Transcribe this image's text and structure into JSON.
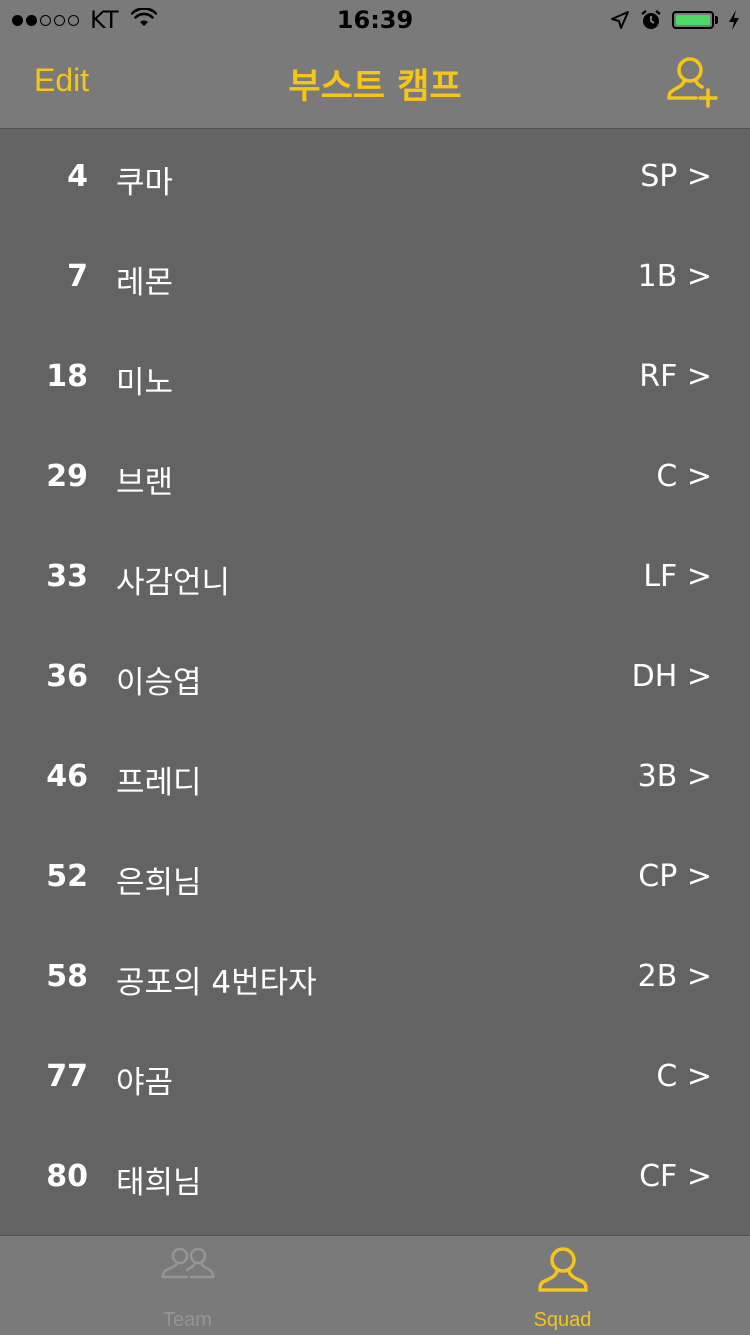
{
  "status_bar": {
    "carrier": "KT",
    "time": "16:39",
    "battery_level": 1.0,
    "battery_color": "#4cd964"
  },
  "nav": {
    "edit_label": "Edit",
    "title": "부스트 캠프",
    "add_icon": "add-user-icon"
  },
  "players": [
    {
      "number": "4",
      "name": "쿠마",
      "position": "SP >"
    },
    {
      "number": "7",
      "name": "레몬",
      "position": "1B >"
    },
    {
      "number": "18",
      "name": "미노",
      "position": "RF >"
    },
    {
      "number": "29",
      "name": "브랜",
      "position": "C >"
    },
    {
      "number": "33",
      "name": "사감언니",
      "position": "LF >"
    },
    {
      "number": "36",
      "name": "이승엽",
      "position": "DH >"
    },
    {
      "number": "46",
      "name": "프레디",
      "position": "3B >"
    },
    {
      "number": "52",
      "name": "은희님",
      "position": "CP >"
    },
    {
      "number": "58",
      "name": "공포의 4번타자",
      "position": "2B >"
    },
    {
      "number": "77",
      "name": "야곰",
      "position": "C >"
    },
    {
      "number": "80",
      "name": "태희님",
      "position": "CF >"
    }
  ],
  "tabs": [
    {
      "label": "Team",
      "icon": "team-icon",
      "selected": false
    },
    {
      "label": "Squad",
      "icon": "person-icon",
      "selected": true
    }
  ],
  "colors": {
    "accent": "#f5c518",
    "bar_background": "#7a7a7a",
    "list_background": "#636363",
    "inactive_tab": "#959595"
  }
}
